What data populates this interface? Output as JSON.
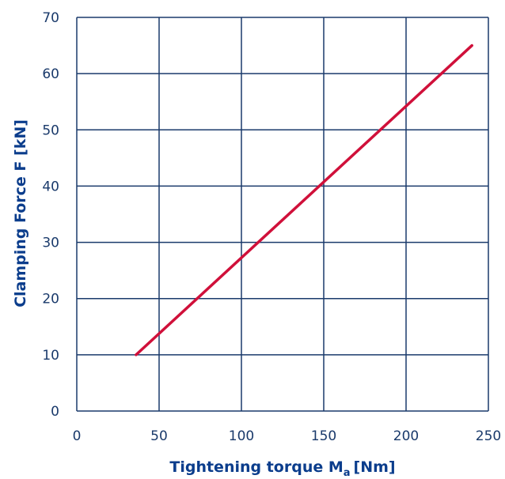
{
  "chart_data": {
    "type": "line",
    "xlabel": "Tightening torque M",
    "xlabel_sub": "a",
    "xlabel_unit": "[Nm]",
    "ylabel": "Clamping Force  F [kN]",
    "xlim": [
      0,
      250
    ],
    "ylim": [
      0,
      70
    ],
    "x_ticks": [
      "0",
      "50",
      "100",
      "150",
      "200",
      "250"
    ],
    "y_ticks": [
      "0",
      "10",
      "20",
      "30",
      "40",
      "50",
      "60",
      "70"
    ],
    "grid": true,
    "series": [
      {
        "color": "#d0103a",
        "x": [
          36,
          240
        ],
        "y": [
          10,
          65
        ]
      }
    ],
    "grid_color": "#1a3a6b",
    "text_color": "#0b3d8c"
  }
}
